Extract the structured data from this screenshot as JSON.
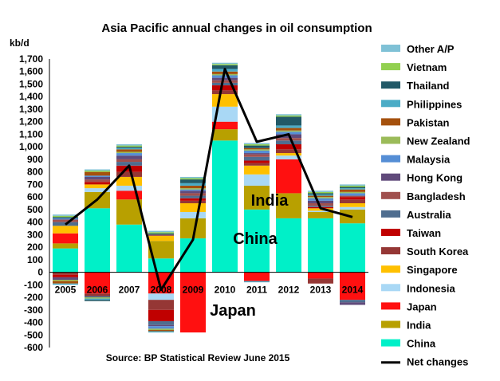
{
  "chart_data": {
    "type": "bar",
    "stacked": true,
    "title": "Asia Pacific annual changes in oil consumption",
    "ylabel": "kb/d",
    "source": "Source: BP Statistical Review June 2015",
    "ylim": [
      -600,
      1700
    ],
    "y_ticks": [
      "1,700",
      "1,600",
      "1,500",
      "1,400",
      "1,300",
      "1,200",
      "1,100",
      "1,000",
      "900",
      "800",
      "700",
      "600",
      "500",
      "400",
      "300",
      "200",
      "100",
      "0",
      "-100",
      "-200",
      "-300",
      "-400",
      "-500",
      "-600"
    ],
    "categories": [
      "2005",
      "2006",
      "2007",
      "2008",
      "2009",
      "2010",
      "2011",
      "2012",
      "2013",
      "2014"
    ],
    "annotations": [
      "China",
      "India",
      "Japan"
    ],
    "series": [
      {
        "name": "China",
        "color": "#00F0C8",
        "values": [
          190,
          510,
          380,
          110,
          270,
          1050,
          500,
          430,
          430,
          390
        ]
      },
      {
        "name": "India",
        "color": "#B8A000",
        "values": [
          40,
          130,
          200,
          140,
          160,
          90,
          190,
          200,
          50,
          110
        ]
      },
      {
        "name": "Japan",
        "color": "#FF1010",
        "values": [
          80,
          -170,
          70,
          -170,
          -480,
          60,
          -70,
          270,
          -50,
          -220
        ]
      },
      {
        "name": "Indonesia",
        "color": "#A9D8F5",
        "values": [
          0,
          30,
          40,
          -50,
          50,
          120,
          90,
          30,
          10,
          20
        ]
      },
      {
        "name": "Singapore",
        "color": "#FFC000",
        "values": [
          60,
          30,
          70,
          40,
          70,
          100,
          70,
          20,
          20,
          30
        ]
      },
      {
        "name": "South Korea",
        "color": "#953735",
        "values": [
          -20,
          -20,
          40,
          -80,
          20,
          30,
          20,
          30,
          -40,
          30
        ]
      },
      {
        "name": "Taiwan",
        "color": "#C00000",
        "values": [
          -20,
          20,
          50,
          -90,
          20,
          40,
          20,
          40,
          10,
          20
        ]
      },
      {
        "name": "Australia",
        "color": "#4F6D8F",
        "values": [
          30,
          -10,
          30,
          -30,
          20,
          20,
          30,
          30,
          10,
          -20
        ]
      },
      {
        "name": "Bangladesh",
        "color": "#A0504E",
        "values": [
          20,
          20,
          20,
          10,
          20,
          20,
          20,
          20,
          20,
          10
        ]
      },
      {
        "name": "Hong Kong",
        "color": "#604A7B",
        "values": [
          -20,
          20,
          30,
          -10,
          20,
          20,
          10,
          30,
          20,
          -20
        ]
      },
      {
        "name": "Malaysia",
        "color": "#558ED5",
        "values": [
          10,
          10,
          20,
          -20,
          10,
          20,
          20,
          20,
          20,
          20
        ]
      },
      {
        "name": "New Zealand",
        "color": "#9BBB59",
        "values": [
          -10,
          -10,
          10,
          -10,
          10,
          10,
          10,
          10,
          10,
          10
        ]
      },
      {
        "name": "Pakistan",
        "color": "#A5510D",
        "values": [
          -20,
          30,
          20,
          -10,
          20,
          20,
          10,
          20,
          10,
          20
        ]
      },
      {
        "name": "Philippines",
        "color": "#4BACC6",
        "values": [
          -10,
          -10,
          10,
          -10,
          20,
          20,
          -10,
          20,
          10,
          10
        ]
      },
      {
        "name": "Thailand",
        "color": "#215967",
        "values": [
          10,
          -10,
          10,
          10,
          30,
          30,
          20,
          70,
          10,
          10
        ]
      },
      {
        "name": "Vietnam",
        "color": "#92D050",
        "values": [
          10,
          10,
          10,
          10,
          10,
          10,
          10,
          10,
          10,
          10
        ]
      },
      {
        "name": "Other A/P",
        "color": "#7FC1D6",
        "values": [
          10,
          10,
          10,
          10,
          10,
          10,
          10,
          10,
          10,
          10
        ]
      }
    ],
    "net_changes": {
      "name": "Net changes",
      "color": "#000000",
      "values": [
        380,
        580,
        850,
        -140,
        260,
        1620,
        1040,
        1100,
        510,
        440
      ]
    },
    "legend_order": [
      "Other A/P",
      "Vietnam",
      "Thailand",
      "Philippines",
      "Pakistan",
      "New Zealand",
      "Malaysia",
      "Hong Kong",
      "Bangladesh",
      "Australia",
      "Taiwan",
      "South Korea",
      "Singapore",
      "Indonesia",
      "Japan",
      "India",
      "China"
    ],
    "legend_position": "right",
    "grid": false
  }
}
